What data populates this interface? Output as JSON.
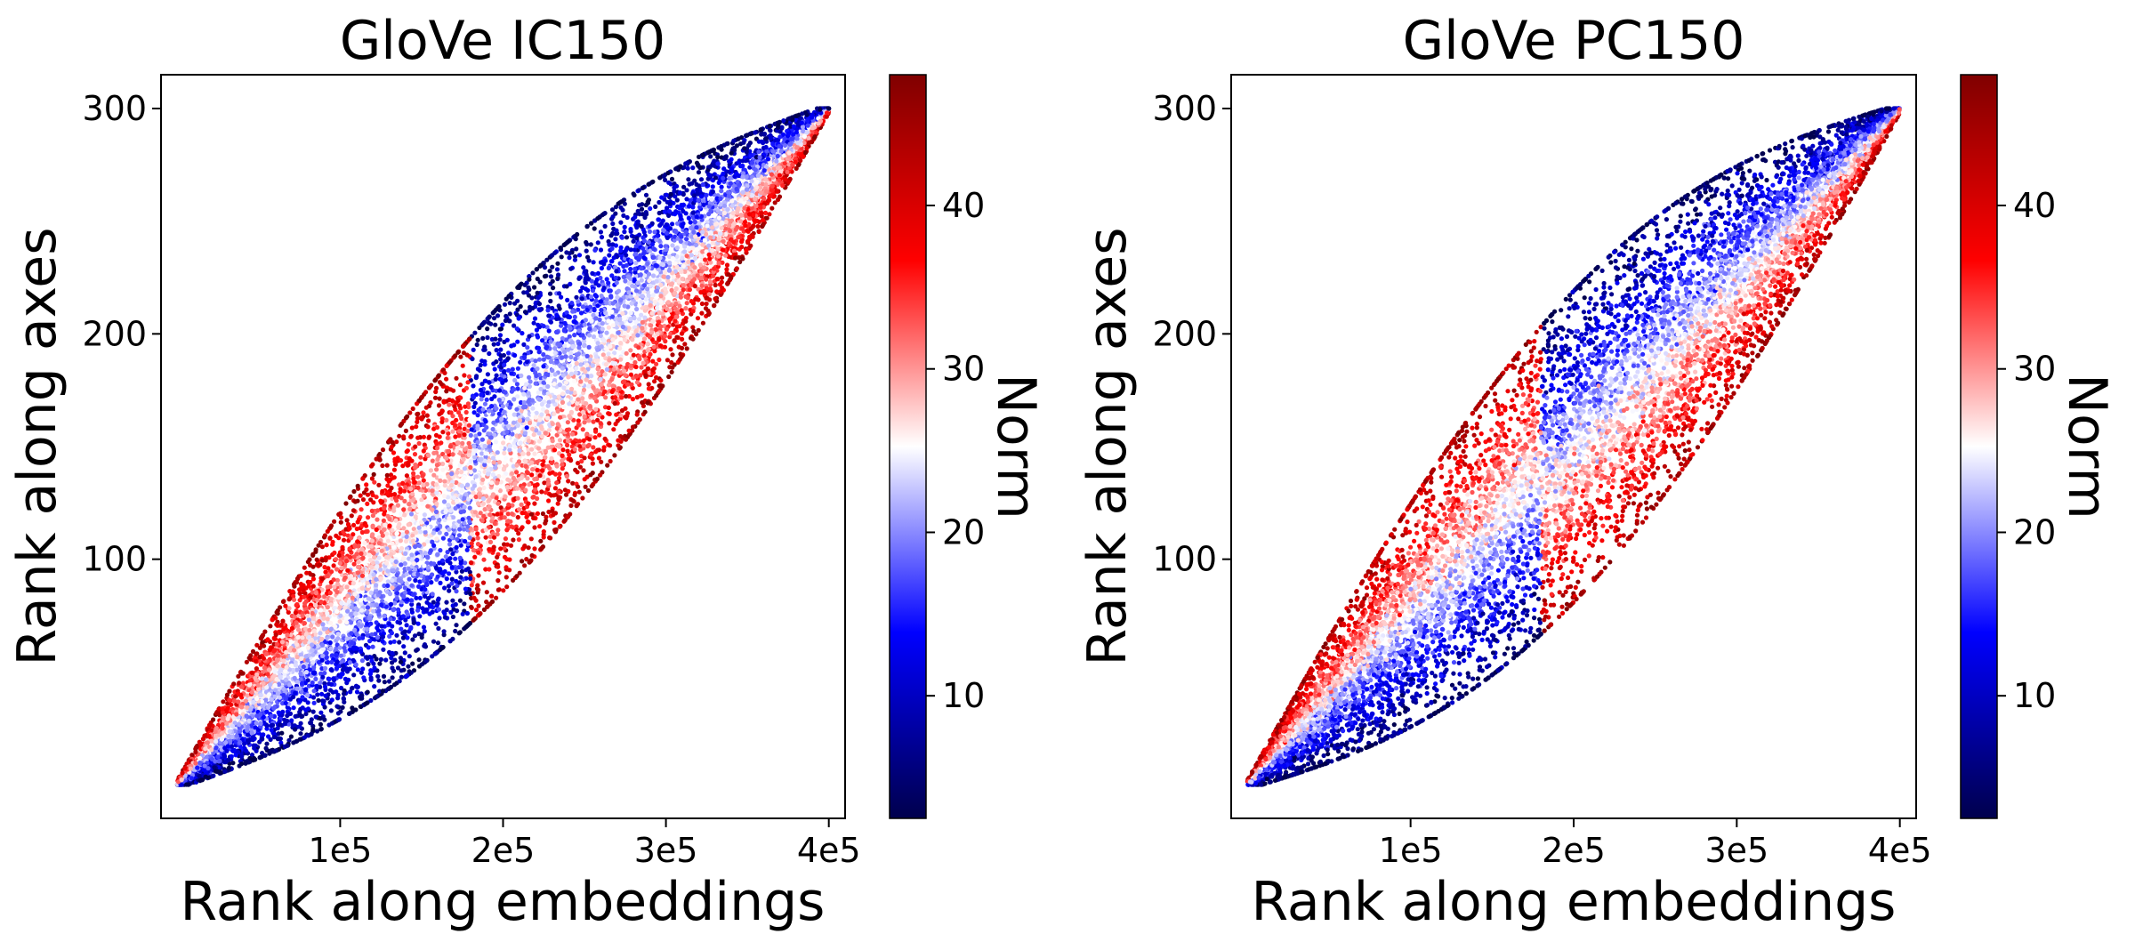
{
  "chart_data": [
    {
      "type": "scatter",
      "title": "GloVe IC150",
      "xlabel": "Rank along embeddings",
      "ylabel": "Rank along axes",
      "xlim": [
        -10000,
        410000
      ],
      "ylim": [
        -15,
        315
      ],
      "x_ticks": [
        {
          "value": 100000,
          "label": "1e5"
        },
        {
          "value": 200000,
          "label": "2e5"
        },
        {
          "value": 300000,
          "label": "3e5"
        },
        {
          "value": 400000,
          "label": "4e5"
        }
      ],
      "y_ticks": [
        {
          "value": 100,
          "label": "100"
        },
        {
          "value": 200,
          "label": "200"
        },
        {
          "value": 300,
          "label": "300"
        }
      ],
      "colorbar": {
        "label": "Norm",
        "range": [
          2.5,
          48
        ],
        "ticks": [
          {
            "value": 10,
            "label": "10"
          },
          {
            "value": 20,
            "label": "20"
          },
          {
            "value": 30,
            "label": "30"
          },
          {
            "value": 40,
            "label": "40"
          }
        ],
        "colormap": "seismic"
      },
      "grid": false,
      "x_points_range": [
        0,
        400000
      ],
      "y_points_range": [
        0,
        300
      ],
      "point_pattern": "dense band along the diagonal from (0,0) to (400000,300); high-norm (red) points lie above the diagonal for ranks below ~180000 and below it for ranks above ~180000; low-norm (blue) points on the opposite side"
    },
    {
      "type": "scatter",
      "title": "GloVe PC150",
      "xlabel": "Rank along embeddings",
      "ylabel": "Rank along axes",
      "xlim": [
        -10000,
        410000
      ],
      "ylim": [
        -15,
        315
      ],
      "x_ticks": [
        {
          "value": 100000,
          "label": "1e5"
        },
        {
          "value": 200000,
          "label": "2e5"
        },
        {
          "value": 300000,
          "label": "3e5"
        },
        {
          "value": 400000,
          "label": "4e5"
        }
      ],
      "y_ticks": [
        {
          "value": 100,
          "label": "100"
        },
        {
          "value": 200,
          "label": "200"
        },
        {
          "value": 300,
          "label": "300"
        }
      ],
      "colorbar": {
        "label": "Norm",
        "range": [
          2.5,
          48
        ],
        "ticks": [
          {
            "value": 10,
            "label": "10"
          },
          {
            "value": 20,
            "label": "20"
          },
          {
            "value": 30,
            "label": "30"
          },
          {
            "value": 40,
            "label": "40"
          }
        ],
        "colormap": "seismic"
      },
      "grid": false,
      "x_points_range": [
        0,
        400000
      ],
      "y_points_range": [
        0,
        300
      ],
      "point_pattern": "dense band along the diagonal from (0,0) to (400000,300); high-norm (red) points lie above the diagonal for ranks below ~180000 and below it for ranks above ~180000; low-norm (blue) points on the opposite side"
    }
  ]
}
